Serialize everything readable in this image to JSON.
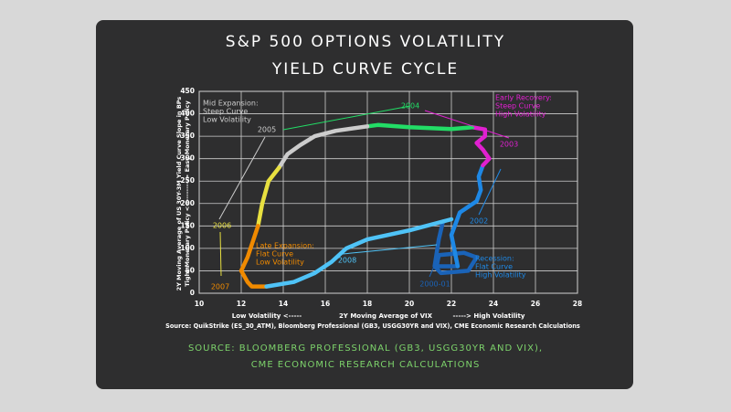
{
  "chart_data": {
    "type": "line",
    "title": "S&P 500 OPTIONS VOLATILITY",
    "subtitle": "YIELD CURVE CYCLE",
    "y_label": "2Y Moving Average of US 30Y-3M Yield Curve Slope in BPs",
    "y_label_sub": "Tight Monetary Policy <-----------> Easy Monetary Policy",
    "x_label_left": "Low Volatility <-----",
    "x_label": "2Y Moving Average of VIX",
    "x_label_right": "-----> High Volatility",
    "source": "Source: QuikStrike (ES_30_ATM), Bloomberg Professional (GB3, USGG30YR and VIX), CME Economic Research Calculations",
    "footer": [
      "SOURCE: BLOOMBERG PROFESSIONAL (GB3, USGG30YR AND VIX),",
      "CME ECONOMIC RESEARCH CALCULATIONS"
    ],
    "xlim": [
      10,
      28
    ],
    "xticks": [
      10,
      12,
      14,
      16,
      18,
      20,
      22,
      24,
      26,
      28
    ],
    "ylim": [
      0,
      450
    ],
    "yticks": [
      0,
      50,
      100,
      150,
      200,
      250,
      300,
      350,
      400,
      450
    ],
    "grid": true,
    "series": [
      {
        "name": "2000-01",
        "color": "#1a63b8",
        "x": [
          21.6,
          21.4,
          21.2,
          21.5,
          22.8,
          23.2,
          22.6,
          21.4,
          21.3,
          22.3
        ],
        "values": [
          160,
          120,
          60,
          45,
          50,
          80,
          90,
          85,
          60,
          60
        ]
      },
      {
        "name": "2002",
        "color": "#1e88e5",
        "x": [
          22.3,
          22.0,
          22.4,
          23.2,
          23.4,
          23.3,
          23.5
        ],
        "values": [
          60,
          130,
          180,
          205,
          230,
          260,
          285
        ]
      },
      {
        "name": "2003",
        "color": "#e020d0",
        "x": [
          23.5,
          23.8,
          23.5,
          23.2,
          23.6,
          23.6,
          23.0
        ],
        "values": [
          285,
          300,
          320,
          335,
          350,
          365,
          370
        ]
      },
      {
        "name": "2004",
        "color": "#22dd66",
        "x": [
          23.0,
          22.0,
          20.0,
          18.5,
          18.0
        ],
        "values": [
          370,
          366,
          370,
          375,
          372
        ]
      },
      {
        "name": "2005",
        "color": "#cccccc",
        "x": [
          18.0,
          16.5,
          15.5,
          14.8,
          14.2,
          13.8
        ],
        "values": [
          372,
          362,
          350,
          330,
          310,
          280
        ]
      },
      {
        "name": "2006",
        "color": "#e8e040",
        "x": [
          13.8,
          13.3,
          13.0,
          12.8
        ],
        "values": [
          280,
          250,
          200,
          150
        ]
      },
      {
        "name": "2007",
        "color": "#f08a00",
        "x": [
          12.8,
          12.3,
          12.0,
          12.3,
          12.5,
          13.2
        ],
        "values": [
          150,
          80,
          50,
          25,
          15,
          15
        ]
      },
      {
        "name": "2008",
        "color": "#4fc3f7",
        "x": [
          13.2,
          14.5,
          15.5,
          16.3,
          17.0,
          18.0,
          20.0,
          22.0
        ],
        "values": [
          15,
          25,
          45,
          70,
          100,
          120,
          140,
          165
        ]
      }
    ],
    "annotations": [
      {
        "lines": [
          "Mid Expansion:",
          "Steep Curve",
          "Low Volatility"
        ],
        "color": "#cccccc"
      },
      {
        "lines": [
          "Early Recovery:",
          "Steep Curve",
          "High Volatility"
        ],
        "color": "#e020d0"
      },
      {
        "lines": [
          "Late Expansion:",
          "Flat Curve",
          "Low Volatility"
        ],
        "color": "#f08a00"
      },
      {
        "lines": [
          "Recession:",
          "Flat Curve",
          "High Volatility"
        ],
        "color": "#1e88e5"
      }
    ]
  }
}
